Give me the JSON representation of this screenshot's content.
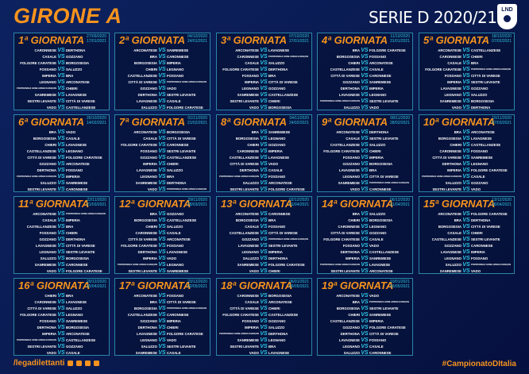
{
  "header": {
    "title": "GIRONE A",
    "season": "SERIE D 2020/21",
    "logo_text": "LND"
  },
  "footer": {
    "handle": "/legadilettanti",
    "social_icons": [
      "facebook-icon",
      "instagram-icon",
      "twitter-icon",
      "youtube-icon"
    ],
    "hashtag": "#CampionatoDItalia"
  },
  "colors": {
    "accent": "#f7931e",
    "vs": "#2fc4e6",
    "border": "#2a86a8"
  },
  "vs_label": "VS",
  "giornate": [
    {
      "title": "1ª GIORNATA",
      "andata": "27/09/2020",
      "ritorno": "17/01/2021",
      "matches": [
        [
          "CARONNESE",
          "DERTHONA"
        ],
        [
          "CASALE",
          "GOZZANO"
        ],
        [
          "FOLGORE CARATESE",
          "BORGOSESIA"
        ],
        [
          "FOSSANO",
          "SALUZZO"
        ],
        [
          "IMPERIA",
          "BRA"
        ],
        [
          "LEGNANO",
          "ARCONATESE"
        ],
        [
          "PONTDONNAZ HÔNE ARNAD EVANÇON",
          "CHIERI"
        ],
        [
          "SANREMESE",
          "LAVAGNESE"
        ],
        [
          "SESTRI LEVANTE",
          "CITTÀ DI VARESE"
        ],
        [
          "VADO",
          "CASTELLANZESE"
        ]
      ]
    },
    {
      "title": "2ª GIORNATA",
      "andata": "04/10/2020",
      "ritorno": "24/01/2021",
      "matches": [
        [
          "ARCONATESE",
          "SANREMESE"
        ],
        [
          "BRA",
          "CARONNESE"
        ],
        [
          "BORGOSESIA",
          "IMPERIA"
        ],
        [
          "CHIERI",
          "LEGNANO"
        ],
        [
          "CASTELLANZESE",
          "FOSSANO"
        ],
        [
          "CITTÀ DI VARESE",
          "PONTDONNAZ HÔNE ARNAD EVANÇON"
        ],
        [
          "GOZZANO",
          "VADO"
        ],
        [
          "DERTHONA",
          "SESTRI LEVANTE"
        ],
        [
          "LAVAGNESE",
          "CASALE"
        ],
        [
          "SALUZZO",
          "FOLGORE CARATESE"
        ]
      ]
    },
    {
      "title": "3ª GIORNATA",
      "andata": "07/10/2020",
      "ritorno": "27/01/2021",
      "matches": [
        [
          "ARCONATESE",
          "LAVAGNESE"
        ],
        [
          "CARONNESE",
          "PONTDONNAZ HÔNE ARNAD EVANÇON"
        ],
        [
          "CASALE",
          "SALUZZO"
        ],
        [
          "FOLGORE CARATESE",
          "DERTHONA"
        ],
        [
          "FOSSANO",
          "BRA"
        ],
        [
          "IMPERIA",
          "CITTÀ DI VARESE"
        ],
        [
          "LEGNANO",
          "GOZZANO"
        ],
        [
          "SANREMESE",
          "CASTELLANZESE"
        ],
        [
          "SESTRI LEVANTE",
          "CHIERI"
        ],
        [
          "VADO",
          "BORGOSESIA"
        ]
      ]
    },
    {
      "title": "4ª GIORNATA",
      "andata": "11/10/2020",
      "ritorno": "31/01/2021",
      "matches": [
        [
          "BRA",
          "FOLGORE CARATESE"
        ],
        [
          "BORGOSESIA",
          "FOSSANO"
        ],
        [
          "CHIERI",
          "ARCONATESE"
        ],
        [
          "CASTELLANZESE",
          "CASALE"
        ],
        [
          "CITTÀ DI VARESE",
          "CARONNESE"
        ],
        [
          "GOZZANO",
          "SANREMESE"
        ],
        [
          "DERTHONA",
          "IMPERIA"
        ],
        [
          "LAVAGNESE",
          "LEGNANO"
        ],
        [
          "PONTDONNAZ HÔNE ARNAD EVANÇON",
          "SESTRI LEVANTE"
        ],
        [
          "SALUZZO",
          "VADO"
        ]
      ]
    },
    {
      "title": "5ª GIORNATA",
      "andata": "18/10/2020",
      "ritorno": "07/02/2021",
      "matches": [
        [
          "ARCONATESE",
          "CASTELLANZESE"
        ],
        [
          "CARONNESE",
          "CHIERI"
        ],
        [
          "CASALE",
          "BRA"
        ],
        [
          "FOLGORE CARATESE",
          "PONTDONNAZ HÔNE ARNAD EVANÇON"
        ],
        [
          "FOSSANO",
          "CITTÀ DI VARESE"
        ],
        [
          "IMPERIA",
          "SESTRI LEVANTE"
        ],
        [
          "LAVAGNESE",
          "GOZZANO"
        ],
        [
          "LEGNANO",
          "SALUZZO"
        ],
        [
          "SANREMESE",
          "BORGOSESIA"
        ],
        [
          "VADO",
          "DERTHONA"
        ]
      ]
    },
    {
      "title": "6ª GIORNATA",
      "andata": "25/10/2020",
      "ritorno": "14/02/2021",
      "matches": [
        [
          "BRA",
          "VADO"
        ],
        [
          "BORGOSESIA",
          "CASALE"
        ],
        [
          "CHIERI",
          "LAVAGNESE"
        ],
        [
          "CASTELLANZESE",
          "LEGNANO"
        ],
        [
          "CITTÀ DI VARESE",
          "FOLGORE CARATESE"
        ],
        [
          "GOZZANO",
          "ARCONATESE"
        ],
        [
          "DERTHONA",
          "FOSSANO"
        ],
        [
          "PONTDONNAZ HÔNE ARNAD EVANÇON",
          "IMPERIA"
        ],
        [
          "SALUZZO",
          "SANREMESE"
        ],
        [
          "SESTRI LEVANTE",
          "CARONNESE"
        ]
      ]
    },
    {
      "title": "7ª GIORNATA",
      "andata": "01/11/2020",
      "ritorno": "21/02/2021",
      "matches": [
        [
          "ARCONATESE",
          "BORGOSESIA"
        ],
        [
          "CASALE",
          "CITTÀ DI VARESE"
        ],
        [
          "FOLGORE CARATESE",
          "CARONNESE"
        ],
        [
          "FOSSANO",
          "SESTRI LEVANTE"
        ],
        [
          "GOZZANO",
          "CASTELLANZESE"
        ],
        [
          "IMPERIA",
          "CHIERI"
        ],
        [
          "LAVAGNESE",
          "SALUZZO"
        ],
        [
          "LEGNANO",
          "BRA"
        ],
        [
          "SANREMESE",
          "DERTHONA"
        ],
        [
          "VADO",
          "PONTDONNAZ HÔNE ARNAD EVANÇON"
        ]
      ]
    },
    {
      "title": "8ª GIORNATA",
      "andata": "04/11/2020",
      "ritorno": "24/02/2021",
      "matches": [
        [
          "BRA",
          "SANREMESE"
        ],
        [
          "BORGOSESIA",
          "LEGNANO"
        ],
        [
          "CHIERI",
          "GOZZANO"
        ],
        [
          "CARONNESE",
          "IMPERIA"
        ],
        [
          "CASTELLANZESE",
          "LAVAGNESE"
        ],
        [
          "CITTÀ DI VARESE",
          "VADO"
        ],
        [
          "DERTHONA",
          "CASALE"
        ],
        [
          "PONTDONNAZ HÔNE ARNAD EVANÇON",
          "FOSSANO"
        ],
        [
          "SALUZZO",
          "ARCONATESE"
        ],
        [
          "SESTRI LEVANTE",
          "FOLGORE CARATESE"
        ]
      ]
    },
    {
      "title": "9ª GIORNATA",
      "andata": "08/11/2020",
      "ritorno": "28/02/2021",
      "matches": [
        [
          "ARCONATESE",
          "DERTHONA"
        ],
        [
          "CASALE",
          "SESTRI LEVANTE"
        ],
        [
          "CASTELLANZESE",
          "SALUZZO"
        ],
        [
          "FOLGORE CARATESE",
          "CHIERI"
        ],
        [
          "FOSSANO",
          "IMPERIA"
        ],
        [
          "GOZZANO",
          "BORGOSESIA"
        ],
        [
          "LAVAGNESE",
          "BRA"
        ],
        [
          "LEGNANO",
          "CITTÀ DI VARESE"
        ],
        [
          "SANREMESE",
          "PONTDONNAZ HÔNE ARNAD EVANÇON"
        ],
        [
          "VADO",
          "CARONNESE"
        ]
      ]
    },
    {
      "title": "10ª GIORNATA",
      "andata": "15/11/2020",
      "ritorno": "07/03/2021",
      "matches": [
        [
          "BRA",
          "ARCONATESE"
        ],
        [
          "BORGOSESIA",
          "LAVAGNESE"
        ],
        [
          "CHIERI",
          "CASTELLANZESE"
        ],
        [
          "CARONNESE",
          "FOSSANO"
        ],
        [
          "CITTÀ DI VARESE",
          "SANREMESE"
        ],
        [
          "DERTHONA",
          "LEGNANO"
        ],
        [
          "IMPERIA",
          "FOLGORE CARATESE"
        ],
        [
          "PONTDONNAZ HÔNE ARNAD EVANÇON",
          "CASALE"
        ],
        [
          "SALUZZO",
          "GOZZANO"
        ],
        [
          "SESTRI LEVANTE",
          "VADO"
        ]
      ]
    },
    {
      "title": "11ª GIORNATA",
      "andata": "22/11/2020",
      "ritorno": "21/03/2021",
      "matches": [
        [
          "ARCONATESE",
          "PONTDONNAZ HÔNE ARNAD EVANÇON"
        ],
        [
          "CASALE",
          "IMPERIA"
        ],
        [
          "CASTELLANZESE",
          "BRA"
        ],
        [
          "FOSSANO",
          "CHIERI"
        ],
        [
          "GOZZANO",
          "DERTHONA"
        ],
        [
          "LAVAGNESE",
          "CITTÀ DI VARESE"
        ],
        [
          "LEGNANO",
          "SESTRI LEVANTE"
        ],
        [
          "SALUZZO",
          "BORGOSESIA"
        ],
        [
          "SANREMESE",
          "CARONNESE"
        ],
        [
          "VADO",
          "FOLGORE CARATESE"
        ]
      ]
    },
    {
      "title": "12ª GIORNATA",
      "andata": "29/11/2020",
      "ritorno": "28/03/2021",
      "matches": [
        [
          "BRA",
          "GOZZANO"
        ],
        [
          "BORGOSESIA",
          "CASTELLANZESE"
        ],
        [
          "CHIERI",
          "SALUZZO"
        ],
        [
          "CARONNESE",
          "CASALE"
        ],
        [
          "CITTÀ DI VARESE",
          "ARCONATESE"
        ],
        [
          "FOLGORE CARATESE",
          "FOSSANO"
        ],
        [
          "DERTHONA",
          "LAVAGNESE"
        ],
        [
          "IMPERIA",
          "VADO"
        ],
        [
          "PONTDONNAZ HÔNE ARNAD EVANÇON",
          "LEGNANO"
        ],
        [
          "SESTRI LEVANTE",
          "SANREMESE"
        ]
      ]
    },
    {
      "title": "13ª GIORNATA",
      "andata": "02/12/2020",
      "ritorno": "01/04/2021",
      "matches": [
        [
          "ARCONATESE",
          "CARONNESE"
        ],
        [
          "BORGOSESIA",
          "BRA"
        ],
        [
          "CASALE",
          "FOSSANO"
        ],
        [
          "CASTELLANZESE",
          "CITTÀ DI VARESE"
        ],
        [
          "GOZZANO",
          "PONTDONNAZ HÔNE ARNAD EVANÇON"
        ],
        [
          "LAVAGNESE",
          "SESTRI LEVANTE"
        ],
        [
          "LEGNANO",
          "IMPERIA"
        ],
        [
          "SALUZZO",
          "DERTHONA"
        ],
        [
          "SANREMESE",
          "FOLGORE CARATESE"
        ],
        [
          "VADO",
          "CHIERI"
        ]
      ]
    },
    {
      "title": "14ª GIORNATA",
      "andata": "06/12/2020",
      "ritorno": "11/04/2021",
      "matches": [
        [
          "BRA",
          "SALUZZO"
        ],
        [
          "CHIERI",
          "BORGOSESIA"
        ],
        [
          "CARONNESE",
          "LEGNANO"
        ],
        [
          "CITTÀ DI VARESE",
          "GOZZANO"
        ],
        [
          "FOLGORE CARATESE",
          "CASALE"
        ],
        [
          "FOSSANO",
          "VADO"
        ],
        [
          "DERTHONA",
          "CASTELLANZESE"
        ],
        [
          "IMPERIA",
          "SANREMESE"
        ],
        [
          "PONTDONNAZ HÔNE ARNAD EVANÇON",
          "LAVAGNESE"
        ],
        [
          "SESTRI LEVANTE",
          "ARCONATESE"
        ]
      ]
    },
    {
      "title": "15ª GIORNATA",
      "andata": "13/12/2020",
      "ritorno": "18/04/2021",
      "matches": [
        [
          "ARCONATESE",
          "FOLGORE CARATESE"
        ],
        [
          "BRA",
          "DERTHONA"
        ],
        [
          "BORGOSESIA",
          "CITTÀ DI VARESE"
        ],
        [
          "CASALE",
          "CHIERI"
        ],
        [
          "CASTELLANZESE",
          "SESTRI LEVANTE"
        ],
        [
          "GOZZANO",
          "CARONNESE"
        ],
        [
          "LAVAGNESE",
          "IMPERIA"
        ],
        [
          "LEGNANO",
          "FOSSANO"
        ],
        [
          "SALUZZO",
          "PONTDONNAZ HÔNE ARNAD EVANÇON"
        ],
        [
          "SANREMESE",
          "VADO"
        ]
      ]
    },
    {
      "title": "16ª GIORNATA",
      "andata": "20/12/2020",
      "ritorno": "25/04/2021",
      "matches": [
        [
          "CHIERI",
          "BRA"
        ],
        [
          "CARONNESE",
          "LAVAGNESE"
        ],
        [
          "CITTÀ DI VARESE",
          "SALUZZO"
        ],
        [
          "FOLGORE CARATESE",
          "LEGNANO"
        ],
        [
          "FOSSANO",
          "SANREMESE"
        ],
        [
          "DERTHONA",
          "BORGOSESIA"
        ],
        [
          "IMPERIA",
          "ARCONATESE"
        ],
        [
          "PONTDONNAZ HÔNE ARNAD EVANÇON",
          "CASTELLANZESE"
        ],
        [
          "SESTRI LEVANTE",
          "GOZZANO"
        ],
        [
          "VADO",
          "CASALE"
        ]
      ]
    },
    {
      "title": "17ª GIORNATA",
      "andata": "23/12/2020",
      "ritorno": "02/05/2021",
      "matches": [
        [
          "ARCONATESE",
          "FOSSANO"
        ],
        [
          "BRA",
          "CITTÀ DI VARESE"
        ],
        [
          "BORGOSESIA",
          "PONTDONNAZ HÔNE ARNAD EVANÇON"
        ],
        [
          "CASTELLANZESE",
          "CARONNESE"
        ],
        [
          "GOZZANO",
          "IMPERIA"
        ],
        [
          "DERTHONA",
          "CHIERI"
        ],
        [
          "LAVAGNESE",
          "FOLGORE CARATESE"
        ],
        [
          "LEGNANO",
          "VADO"
        ],
        [
          "SALUZZO",
          "SESTRI LEVANTE"
        ],
        [
          "SANREMESE",
          "CASALE"
        ]
      ]
    },
    {
      "title": "18ª GIORNATA",
      "andata": "06/01/2021",
      "ritorno": "09/05/2021",
      "matches": [
        [
          "CARONNESE",
          "BORGOSESIA"
        ],
        [
          "CASALE",
          "ARCONATESE"
        ],
        [
          "CITTÀ DI VARESE",
          "CHIERI"
        ],
        [
          "FOLGORE CARATESE",
          "CASTELLANZESE"
        ],
        [
          "FOSSANO",
          "GOZZANO"
        ],
        [
          "IMPERIA",
          "SALUZZO"
        ],
        [
          "PONTDONNAZ HÔNE ARNAD EVANÇON",
          "DERTHONA"
        ],
        [
          "SANREMESE",
          "LEGNANO"
        ],
        [
          "SESTRI LEVANTE",
          "BRA"
        ],
        [
          "VADO",
          "LAVAGNESE"
        ]
      ]
    },
    {
      "title": "19ª GIORNATA",
      "andata": "10/01/2021",
      "ritorno": "16/05/2021",
      "matches": [
        [
          "ARCONATESE",
          "VADO"
        ],
        [
          "BRA",
          "PONTDONNAZ HÔNE ARNAD EVANÇON"
        ],
        [
          "BORGOSESIA",
          "SESTRI LEVANTE"
        ],
        [
          "CHIERI",
          "SANREMESE"
        ],
        [
          "CASTELLANZESE",
          "IMPERIA"
        ],
        [
          "GOZZANO",
          "FOLGORE CARATESE"
        ],
        [
          "DERTHONA",
          "CITTÀ DI VARESE"
        ],
        [
          "LAVAGNESE",
          "FOSSANO"
        ],
        [
          "LEGNANO",
          "CASALE"
        ],
        [
          "SALUZZO",
          "CARONNESE"
        ]
      ]
    }
  ]
}
